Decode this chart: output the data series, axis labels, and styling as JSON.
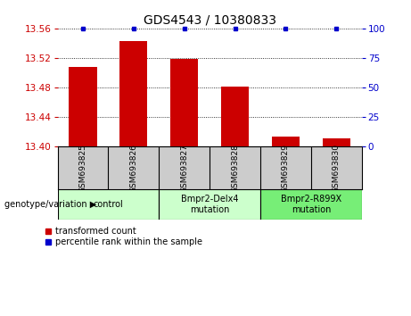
{
  "title": "GDS4543 / 10380833",
  "samples": [
    "GSM693825",
    "GSM693826",
    "GSM693827",
    "GSM693828",
    "GSM693829",
    "GSM693830"
  ],
  "bar_values": [
    13.508,
    13.543,
    13.519,
    13.481,
    13.413,
    13.411
  ],
  "percentile_values": [
    100,
    100,
    100,
    100,
    100,
    100
  ],
  "bar_color": "#cc0000",
  "percentile_color": "#0000cc",
  "ylim_left": [
    13.4,
    13.56
  ],
  "ylim_right": [
    0,
    100
  ],
  "yticks_left": [
    13.4,
    13.44,
    13.48,
    13.52,
    13.56
  ],
  "yticks_right": [
    0,
    25,
    50,
    75,
    100
  ],
  "groups": [
    {
      "label": "control",
      "start": 0,
      "end": 1,
      "color": "#ccffcc"
    },
    {
      "label": "Bmpr2-Delx4\nmutation",
      "start": 2,
      "end": 3,
      "color": "#ccffcc"
    },
    {
      "label": "Bmpr2-R899X\nmutation",
      "start": 4,
      "end": 5,
      "color": "#77ee77"
    }
  ],
  "xlabel_genotype": "genotype/variation",
  "legend_red": "transformed count",
  "legend_blue": "percentile rank within the sample",
  "background_color": "#ffffff",
  "sample_box_color": "#cccccc",
  "title_fontsize": 10,
  "tick_fontsize": 7.5,
  "label_fontsize": 7.5
}
